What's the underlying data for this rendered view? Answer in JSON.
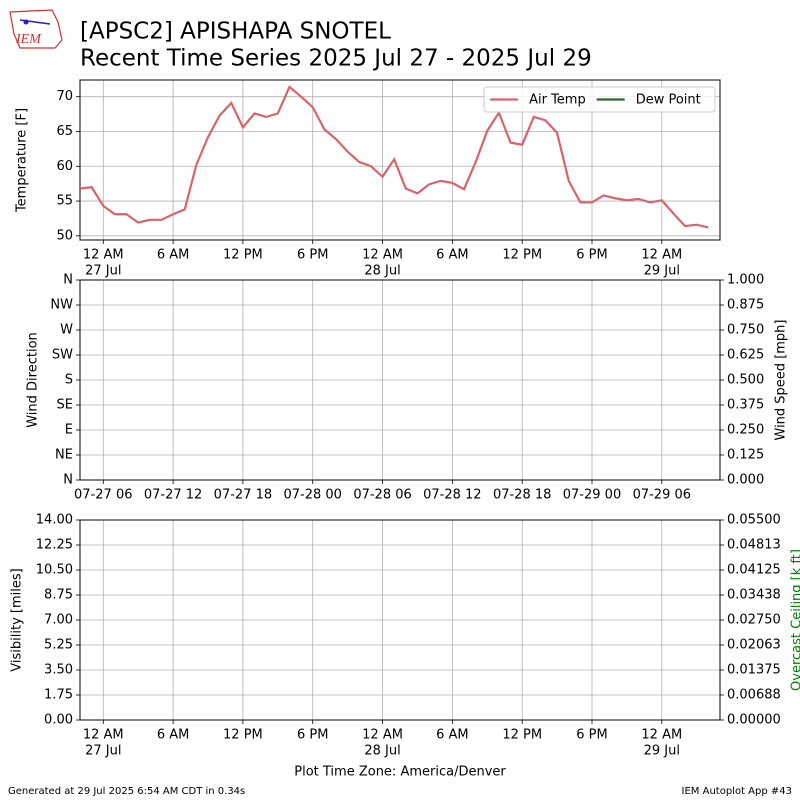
{
  "logo_text": "IEM",
  "footer_left": "Generated at 29 Jul 2025 6:54 AM CDT in 0.34s",
  "footer_right": "IEM Autoplot App #43",
  "chart_data": [
    {
      "type": "line",
      "title": "[APSC2] APISHAPA SNOTEL",
      "subtitle": "Recent Time Series 2025 Jul 27 - 2025 Jul 29",
      "ylabel": "Temperature [F]",
      "x": [
        "07-26 22",
        "07-26 23",
        "07-27 00",
        "07-27 01",
        "07-27 02",
        "07-27 03",
        "07-27 04",
        "07-27 05",
        "07-27 06",
        "07-27 07",
        "07-27 08",
        "07-27 09",
        "07-27 10",
        "07-27 11",
        "07-27 12",
        "07-27 13",
        "07-27 14",
        "07-27 15",
        "07-27 16",
        "07-27 17",
        "07-27 18",
        "07-27 19",
        "07-27 20",
        "07-27 21",
        "07-27 22",
        "07-27 23",
        "07-28 00",
        "07-28 01",
        "07-28 02",
        "07-28 03",
        "07-28 04",
        "07-28 05",
        "07-28 06",
        "07-28 07",
        "07-28 08",
        "07-28 09",
        "07-28 10",
        "07-28 11",
        "07-28 12",
        "07-28 13",
        "07-28 14",
        "07-28 15",
        "07-28 16",
        "07-28 17",
        "07-28 18",
        "07-28 19",
        "07-28 20",
        "07-28 21",
        "07-28 22",
        "07-28 23",
        "07-29 00",
        "07-29 01",
        "07-29 02",
        "07-29 03",
        "07-29 04"
      ],
      "series": [
        {
          "name": "Air Temp",
          "color": "#d9636b",
          "values": [
            56.8,
            57.0,
            54.3,
            53.1,
            53.1,
            51.9,
            52.3,
            52.3,
            53.1,
            53.8,
            60.2,
            64.2,
            67.3,
            69.1,
            65.6,
            67.6,
            67.1,
            67.6,
            71.4,
            70.0,
            68.5,
            65.3,
            63.9,
            62.1,
            60.6,
            60.0,
            58.5,
            61.0,
            56.8,
            56.1,
            57.4,
            57.9,
            57.6,
            56.7,
            60.6,
            65.1,
            67.7,
            63.4,
            63.1,
            67.1,
            66.6,
            64.8,
            57.9,
            54.8,
            54.8,
            55.8,
            55.4,
            55.1,
            55.3,
            54.8,
            55.1,
            53.2,
            51.4,
            51.6,
            51.2
          ]
        },
        {
          "name": "Dew Point",
          "color": "#2e6b2e",
          "values": [
            null,
            null,
            null,
            null,
            null,
            null,
            null,
            null,
            null,
            null,
            null,
            null,
            null,
            null,
            null,
            null,
            null,
            null,
            null,
            null,
            null,
            null,
            null,
            null,
            null,
            null,
            null,
            null,
            null,
            null,
            null,
            null,
            null,
            null,
            null,
            null,
            null,
            null,
            null,
            null,
            null,
            null,
            null,
            null,
            null,
            null,
            null,
            null,
            null,
            null,
            null,
            null,
            null,
            null,
            null
          ]
        }
      ],
      "xlim": [
        "07-26 22",
        "07-29 05"
      ],
      "xticks": [
        {
          "value": "07-27 00",
          "label": "12 AM",
          "date": "27 Jul"
        },
        {
          "value": "07-27 06",
          "label": "6 AM"
        },
        {
          "value": "07-27 12",
          "label": "12 PM"
        },
        {
          "value": "07-27 18",
          "label": "6 PM"
        },
        {
          "value": "07-28 00",
          "label": "12 AM",
          "date": "28 Jul"
        },
        {
          "value": "07-28 06",
          "label": "6 AM"
        },
        {
          "value": "07-28 12",
          "label": "12 PM"
        },
        {
          "value": "07-28 18",
          "label": "6 PM"
        },
        {
          "value": "07-29 00",
          "label": "12 AM",
          "date": "29 Jul"
        }
      ],
      "ylim": [
        49.4,
        72.4
      ],
      "yticks": [
        50,
        55,
        60,
        65,
        70
      ],
      "grid": true,
      "legend": "upper right"
    },
    {
      "type": "line",
      "ylabel": "Wind Direction",
      "y2label": "Wind Speed [mph]",
      "series": [],
      "xlim": [
        "07-27 04",
        "07-29 11"
      ],
      "xticks": [
        "07-27 06",
        "07-27 12",
        "07-27 18",
        "07-28 00",
        "07-28 06",
        "07-28 12",
        "07-28 18",
        "07-29 00",
        "07-29 06"
      ],
      "ylim": [
        0,
        360
      ],
      "yticks": [
        {
          "value": 0,
          "label": "N"
        },
        {
          "value": 45,
          "label": "NE"
        },
        {
          "value": 90,
          "label": "E"
        },
        {
          "value": 135,
          "label": "SE"
        },
        {
          "value": 180,
          "label": "S"
        },
        {
          "value": 225,
          "label": "SW"
        },
        {
          "value": 270,
          "label": "W"
        },
        {
          "value": 315,
          "label": "NW"
        },
        {
          "value": 360,
          "label": "N"
        }
      ],
      "y2lim": [
        0,
        1
      ],
      "y2ticks": [
        {
          "value": 0,
          "label": "0.000"
        },
        {
          "value": 0.125,
          "label": "0.125"
        },
        {
          "value": 0.25,
          "label": "0.250"
        },
        {
          "value": 0.375,
          "label": "0.375"
        },
        {
          "value": 0.5,
          "label": "0.500"
        },
        {
          "value": 0.625,
          "label": "0.625"
        },
        {
          "value": 0.75,
          "label": "0.750"
        },
        {
          "value": 0.875,
          "label": "0.875"
        },
        {
          "value": 1,
          "label": "1.000"
        }
      ],
      "grid": true
    },
    {
      "type": "line",
      "ylabel": "Visibility [miles]",
      "y2label": "Overcast Ceiling [k ft]",
      "y2label_color": "green",
      "xlabel": "Plot Time Zone: America/Denver",
      "series": [],
      "xlim": [
        "07-26 22",
        "07-29 05"
      ],
      "xticks": [
        {
          "value": "07-27 00",
          "label": "12 AM",
          "date": "27 Jul"
        },
        {
          "value": "07-27 06",
          "label": "6 AM"
        },
        {
          "value": "07-27 12",
          "label": "12 PM"
        },
        {
          "value": "07-27 18",
          "label": "6 PM"
        },
        {
          "value": "07-28 00",
          "label": "12 AM",
          "date": "28 Jul"
        },
        {
          "value": "07-28 06",
          "label": "6 AM"
        },
        {
          "value": "07-28 12",
          "label": "12 PM"
        },
        {
          "value": "07-28 18",
          "label": "6 PM"
        },
        {
          "value": "07-29 00",
          "label": "12 AM",
          "date": "29 Jul"
        }
      ],
      "ylim": [
        0,
        14
      ],
      "yticks": [
        {
          "value": 0,
          "label": "0.00"
        },
        {
          "value": 1.75,
          "label": "1.75"
        },
        {
          "value": 3.5,
          "label": "3.50"
        },
        {
          "value": 5.25,
          "label": "5.25"
        },
        {
          "value": 7,
          "label": "7.00"
        },
        {
          "value": 8.75,
          "label": "8.75"
        },
        {
          "value": 10.5,
          "label": "10.50"
        },
        {
          "value": 12.25,
          "label": "12.25"
        },
        {
          "value": 14,
          "label": "14.00"
        }
      ],
      "y2lim": [
        0,
        0.055
      ],
      "y2ticks": [
        {
          "value": 0,
          "label": "0.00000"
        },
        {
          "value": 0.006875,
          "label": "0.00688"
        },
        {
          "value": 0.01375,
          "label": "0.01375"
        },
        {
          "value": 0.020625,
          "label": "0.02063"
        },
        {
          "value": 0.0275,
          "label": "0.02750"
        },
        {
          "value": 0.034375,
          "label": "0.03438"
        },
        {
          "value": 0.04125,
          "label": "0.04125"
        },
        {
          "value": 0.048125,
          "label": "0.04813"
        },
        {
          "value": 0.055,
          "label": "0.05500"
        }
      ],
      "grid": true
    }
  ]
}
